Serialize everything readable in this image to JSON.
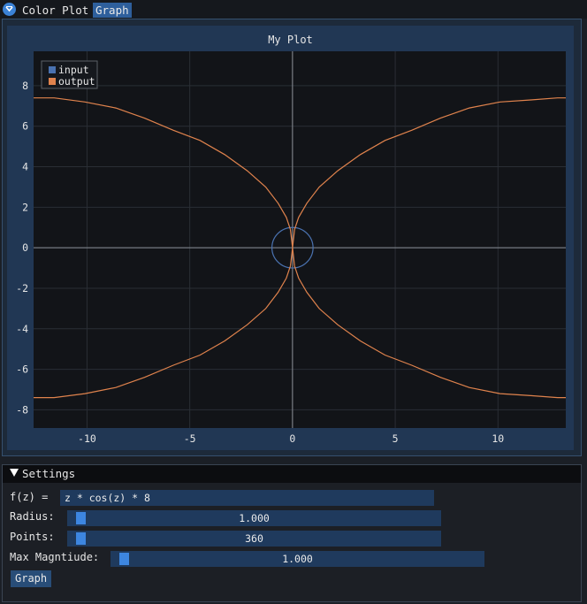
{
  "menu": {
    "tabs": [
      {
        "label": "Color Plot",
        "active": false
      },
      {
        "label": "Graph",
        "active": true
      }
    ]
  },
  "plot": {
    "title": "My Plot"
  },
  "chart_data": {
    "type": "line",
    "title": "My Plot",
    "xlim": [
      -12.6,
      13.3
    ],
    "ylim": [
      -8.9,
      9.7
    ],
    "x_ticks": [
      -10,
      -5,
      0,
      5,
      10
    ],
    "y_ticks": [
      -8,
      -6,
      -4,
      -2,
      0,
      2,
      4,
      6,
      8
    ],
    "grid": true,
    "legend_position": "top-left",
    "series": [
      {
        "name": "input",
        "color": "#4a72b0",
        "shape": "circle",
        "center": [
          0,
          0
        ],
        "radius": 1
      },
      {
        "name": "output",
        "color": "#e0834d",
        "branches": [
          [
            [
              0.1,
              0.9
            ],
            [
              0.3,
              1.5
            ],
            [
              0.7,
              2.2
            ],
            [
              1.3,
              3.0
            ],
            [
              2.2,
              3.8
            ],
            [
              3.3,
              4.6
            ],
            [
              4.5,
              5.3
            ],
            [
              5.8,
              5.8
            ],
            [
              7.2,
              6.4
            ],
            [
              8.6,
              6.9
            ],
            [
              10.1,
              7.2
            ],
            [
              11.6,
              7.3
            ],
            [
              12.9,
              7.4
            ],
            [
              13.3,
              7.4
            ]
          ],
          [
            [
              -0.1,
              0.9
            ],
            [
              -0.3,
              1.5
            ],
            [
              -0.7,
              2.2
            ],
            [
              -1.3,
              3.0
            ],
            [
              -2.2,
              3.8
            ],
            [
              -3.3,
              4.6
            ],
            [
              -4.5,
              5.3
            ],
            [
              -5.8,
              5.8
            ],
            [
              -7.2,
              6.4
            ],
            [
              -8.6,
              6.9
            ],
            [
              -10.1,
              7.2
            ],
            [
              -11.6,
              7.4
            ],
            [
              -12.6,
              7.4
            ]
          ],
          [
            [
              0.1,
              -0.9
            ],
            [
              0.3,
              -1.5
            ],
            [
              0.7,
              -2.2
            ],
            [
              1.3,
              -3.0
            ],
            [
              2.2,
              -3.8
            ],
            [
              3.3,
              -4.6
            ],
            [
              4.5,
              -5.3
            ],
            [
              5.8,
              -5.8
            ],
            [
              7.2,
              -6.4
            ],
            [
              8.6,
              -6.9
            ],
            [
              10.1,
              -7.2
            ],
            [
              11.6,
              -7.3
            ],
            [
              12.9,
              -7.4
            ],
            [
              13.3,
              -7.4
            ]
          ],
          [
            [
              -0.1,
              -0.9
            ],
            [
              -0.3,
              -1.5
            ],
            [
              -0.7,
              -2.2
            ],
            [
              -1.3,
              -3.0
            ],
            [
              -2.2,
              -3.8
            ],
            [
              -3.3,
              -4.6
            ],
            [
              -4.5,
              -5.3
            ],
            [
              -5.8,
              -5.8
            ],
            [
              -7.2,
              -6.4
            ],
            [
              -8.6,
              -6.9
            ],
            [
              -10.1,
              -7.2
            ],
            [
              -11.6,
              -7.4
            ],
            [
              -12.6,
              -7.4
            ]
          ],
          [
            [
              0.1,
              0.9
            ],
            [
              0.0,
              0.0
            ],
            [
              0.1,
              -0.9
            ]
          ],
          [
            [
              -0.1,
              0.9
            ],
            [
              0.0,
              0.0
            ],
            [
              -0.1,
              -0.9
            ]
          ]
        ]
      }
    ]
  },
  "settings": {
    "header": "Settings",
    "fz_label": "f(z) =",
    "fz_value": "z * cos(z) * 8",
    "radius_label": "Radius:",
    "radius_value": "1.000",
    "radius_level": 0.02,
    "points_label": "Points:",
    "points_value": "360",
    "points_level": 0.02,
    "maxmag_label": "Max Magntiude:",
    "maxmag_value": "1.000",
    "maxmag_level": 0.02,
    "graph_button": "Graph"
  }
}
